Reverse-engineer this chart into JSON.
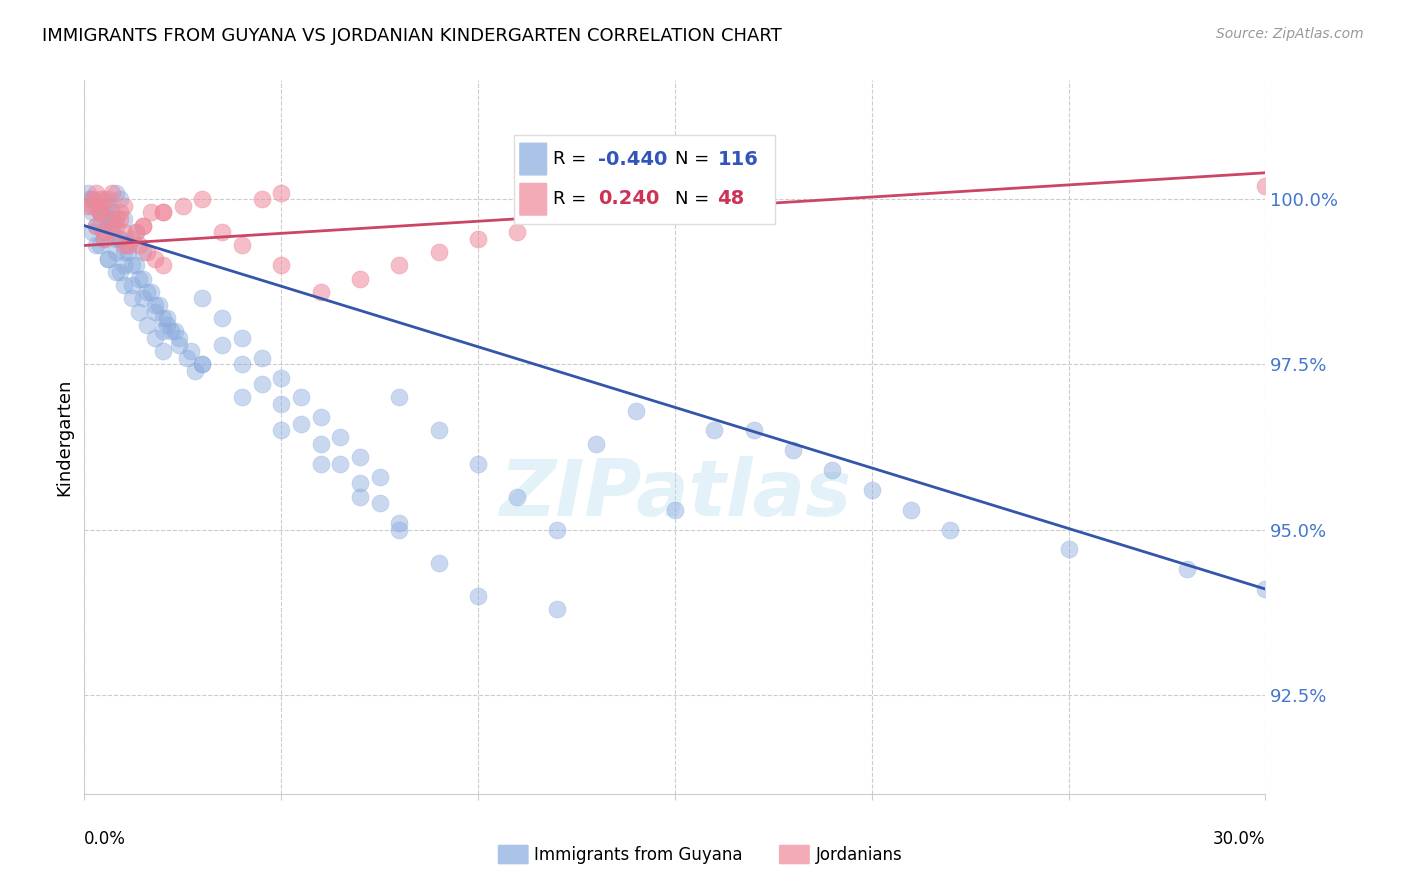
{
  "title": "IMMIGRANTS FROM GUYANA VS JORDANIAN KINDERGARTEN CORRELATION CHART",
  "source": "Source: ZipAtlas.com",
  "ylabel": "Kindergarten",
  "xlim": [
    0.0,
    30.0
  ],
  "ylim": [
    91.0,
    101.8
  ],
  "blue_label": "Immigrants from Guyana",
  "pink_label": "Jordanians",
  "blue_R": -0.44,
  "blue_N": 116,
  "pink_R": 0.24,
  "pink_N": 48,
  "blue_color": "#88AADD",
  "pink_color": "#EE8899",
  "blue_line_color": "#3355AA",
  "pink_line_color": "#CC4466",
  "watermark": "ZIPatlas",
  "ytick_positions": [
    92.5,
    95.0,
    97.5,
    100.0
  ],
  "ytick_labels": [
    "92.5%",
    "95.0%",
    "97.5%",
    "100.0%"
  ],
  "blue_x": [
    0.1,
    0.2,
    0.3,
    0.4,
    0.5,
    0.6,
    0.7,
    0.8,
    0.9,
    1.0,
    0.3,
    0.5,
    0.7,
    0.9,
    1.1,
    1.3,
    1.5,
    0.4,
    0.6,
    0.8,
    1.0,
    1.2,
    1.4,
    1.6,
    1.8,
    2.0,
    2.2,
    2.4,
    2.6,
    2.8,
    0.2,
    0.4,
    0.6,
    0.8,
    1.0,
    1.2,
    1.4,
    1.6,
    1.8,
    2.0,
    3.0,
    3.5,
    4.0,
    4.5,
    5.0,
    5.5,
    6.0,
    6.5,
    7.0,
    7.5,
    0.5,
    0.7,
    0.9,
    1.1,
    1.3,
    1.5,
    1.7,
    1.9,
    2.1,
    2.3,
    8.0,
    9.0,
    10.0,
    11.0,
    12.0,
    13.0,
    14.0,
    15.0,
    16.0,
    0.3,
    0.6,
    0.9,
    1.2,
    1.5,
    1.8,
    2.1,
    2.4,
    2.7,
    3.0,
    17.0,
    18.0,
    19.0,
    20.0,
    21.0,
    22.0,
    25.0,
    28.0,
    30.0,
    3.5,
    4.0,
    4.5,
    5.0,
    5.5,
    6.0,
    6.5,
    7.0,
    7.5,
    8.0,
    0.1,
    0.2,
    0.4,
    0.5,
    0.8,
    1.0,
    2.0,
    3.0,
    4.0,
    5.0,
    6.0,
    7.0,
    8.0,
    9.0,
    10.0,
    12.0
  ],
  "blue_y": [
    100.1,
    100.0,
    99.9,
    99.8,
    100.0,
    99.9,
    99.8,
    100.1,
    100.0,
    99.7,
    99.6,
    99.5,
    99.7,
    99.4,
    99.3,
    99.5,
    99.2,
    99.8,
    99.6,
    99.4,
    99.2,
    99.0,
    98.8,
    98.6,
    98.4,
    98.2,
    98.0,
    97.8,
    97.6,
    97.4,
    99.5,
    99.3,
    99.1,
    98.9,
    98.7,
    98.5,
    98.3,
    98.1,
    97.9,
    97.7,
    98.5,
    98.2,
    97.9,
    97.6,
    97.3,
    97.0,
    96.7,
    96.4,
    96.1,
    95.8,
    99.8,
    99.6,
    99.4,
    99.2,
    99.0,
    98.8,
    98.6,
    98.4,
    98.2,
    98.0,
    97.0,
    96.5,
    96.0,
    95.5,
    95.0,
    96.3,
    96.8,
    95.3,
    96.5,
    99.3,
    99.1,
    98.9,
    98.7,
    98.5,
    98.3,
    98.1,
    97.9,
    97.7,
    97.5,
    96.5,
    96.2,
    95.9,
    95.6,
    95.3,
    95.0,
    94.7,
    94.4,
    94.1,
    97.8,
    97.5,
    97.2,
    96.9,
    96.6,
    96.3,
    96.0,
    95.7,
    95.4,
    95.1,
    100.0,
    99.8,
    99.6,
    99.4,
    99.2,
    99.0,
    98.0,
    97.5,
    97.0,
    96.5,
    96.0,
    95.5,
    95.0,
    94.5,
    94.0,
    93.8
  ],
  "pink_x": [
    0.1,
    0.2,
    0.3,
    0.4,
    0.5,
    0.6,
    0.7,
    0.8,
    0.9,
    1.0,
    0.3,
    0.5,
    0.7,
    0.9,
    1.1,
    1.3,
    1.5,
    1.7,
    2.0,
    2.5,
    3.0,
    3.5,
    4.0,
    4.5,
    5.0,
    0.4,
    0.6,
    0.8,
    1.0,
    1.2,
    1.4,
    1.6,
    1.8,
    2.0,
    6.0,
    7.0,
    8.0,
    9.0,
    10.0,
    11.0,
    0.2,
    0.4,
    5.0,
    0.5,
    1.0,
    1.5,
    2.0,
    30.0
  ],
  "pink_y": [
    99.9,
    100.0,
    100.1,
    99.8,
    99.9,
    100.0,
    100.1,
    99.7,
    99.8,
    99.9,
    99.6,
    99.4,
    99.5,
    99.7,
    99.3,
    99.5,
    99.6,
    99.8,
    99.8,
    99.9,
    100.0,
    99.5,
    99.3,
    100.0,
    100.1,
    99.8,
    99.7,
    99.6,
    99.5,
    99.4,
    99.3,
    99.2,
    99.1,
    99.0,
    98.6,
    98.8,
    99.0,
    99.2,
    99.4,
    99.5,
    99.9,
    100.0,
    99.0,
    99.5,
    99.3,
    99.6,
    99.8,
    100.2
  ],
  "blue_line_x0": 0.0,
  "blue_line_y0": 99.6,
  "blue_line_x1": 30.0,
  "blue_line_y1": 94.1,
  "pink_line_x0": 0.0,
  "pink_line_y0": 99.3,
  "pink_line_x1": 30.0,
  "pink_line_y1": 100.4
}
